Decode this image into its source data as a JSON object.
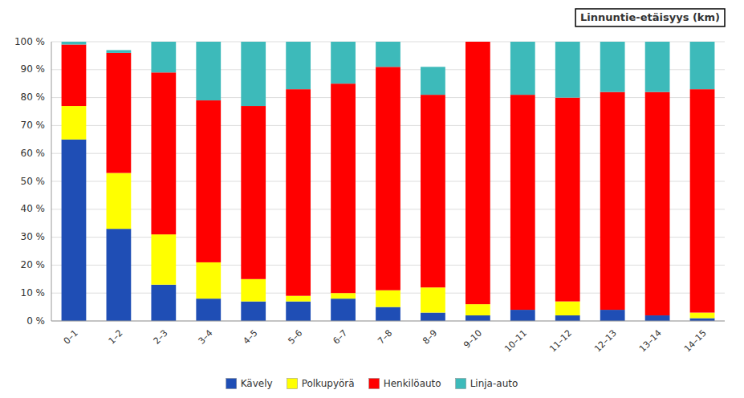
{
  "chart_data": {
    "type": "bar",
    "stacked": true,
    "annotation": "Linnuntie-etäisyys (km)",
    "categories": [
      "0–1",
      "1–2",
      "2–3",
      "3–4",
      "4–5",
      "5–6",
      "6–7",
      "7–8",
      "8–9",
      "9–10",
      "10–11",
      "11–12",
      "12–13",
      "13–14",
      "14–15"
    ],
    "series": [
      {
        "name": "Kävely",
        "color": "#1f4eb5",
        "values": [
          65,
          33,
          13,
          8,
          7,
          7,
          8,
          5,
          3,
          2,
          4,
          2,
          4,
          2,
          1
        ]
      },
      {
        "name": "Polkupyörä",
        "color": "#ffff00",
        "values": [
          12,
          20,
          18,
          13,
          8,
          2,
          2,
          6,
          9,
          4,
          0,
          5,
          0,
          0,
          2
        ]
      },
      {
        "name": "Henkilöauto",
        "color": "#ff0000",
        "values": [
          22,
          43,
          58,
          58,
          62,
          74,
          75,
          80,
          69,
          94,
          77,
          73,
          78,
          80,
          80
        ]
      },
      {
        "name": "Linja-auto",
        "color": "#3dbaba",
        "values": [
          1,
          1,
          11,
          21,
          23,
          17,
          15,
          9,
          10,
          0,
          19,
          20,
          18,
          18,
          17
        ]
      }
    ],
    "ylim": [
      0,
      100
    ],
    "yticks": [
      {
        "value": 0,
        "label": "0 %"
      },
      {
        "value": 10,
        "label": "10 %"
      },
      {
        "value": 20,
        "label": "20 %"
      },
      {
        "value": 30,
        "label": "30 %"
      },
      {
        "value": 40,
        "label": "40 %"
      },
      {
        "value": 50,
        "label": "50 %"
      },
      {
        "value": 60,
        "label": "60 %"
      },
      {
        "value": 70,
        "label": "70 %"
      },
      {
        "value": 80,
        "label": "80 %"
      },
      {
        "value": 90,
        "label": "90 %"
      },
      {
        "value": 100,
        "label": "100 %"
      }
    ],
    "grid": true,
    "legend": "bottom"
  }
}
